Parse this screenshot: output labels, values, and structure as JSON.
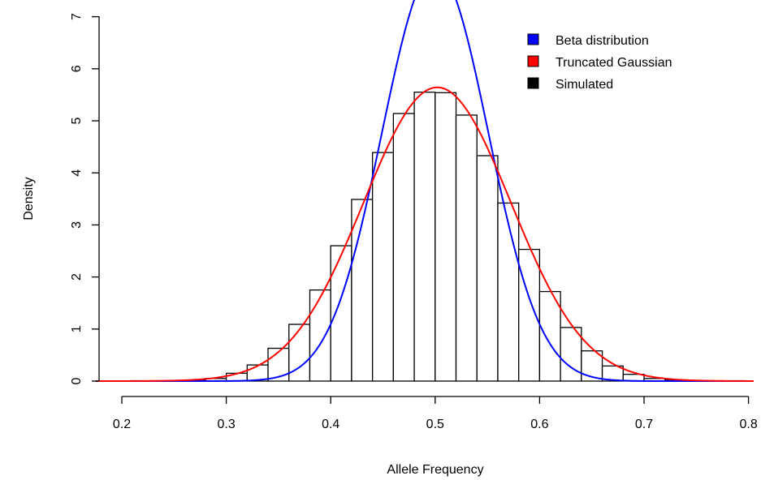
{
  "chart_data": {
    "type": "histogram",
    "title": "",
    "xlabel": "Allele Frequency",
    "ylabel": "Density",
    "xlim": [
      0.175,
      0.805
    ],
    "ylim": [
      0,
      7
    ],
    "x_ticks": [
      0.2,
      0.3,
      0.4,
      0.5,
      0.6,
      0.7,
      0.8
    ],
    "x_tick_labels": [
      "0.2",
      "0.3",
      "0.4",
      "0.5",
      "0.6",
      "0.7",
      "0.8"
    ],
    "y_ticks": [
      0,
      1,
      2,
      3,
      4,
      5,
      6,
      7
    ],
    "y_tick_labels": [
      "0",
      "1",
      "2",
      "3",
      "4",
      "5",
      "6",
      "7"
    ],
    "grid": false,
    "legend_position": "top-right",
    "histogram": {
      "name": "Simulated",
      "bin_width": 0.02,
      "bins": [
        {
          "x0": 0.26,
          "x1": 0.28,
          "density": 0.02
        },
        {
          "x0": 0.28,
          "x1": 0.3,
          "density": 0.05
        },
        {
          "x0": 0.3,
          "x1": 0.32,
          "density": 0.15
        },
        {
          "x0": 0.32,
          "x1": 0.34,
          "density": 0.31
        },
        {
          "x0": 0.34,
          "x1": 0.36,
          "density": 0.63
        },
        {
          "x0": 0.36,
          "x1": 0.38,
          "density": 1.09
        },
        {
          "x0": 0.38,
          "x1": 0.4,
          "density": 1.75
        },
        {
          "x0": 0.4,
          "x1": 0.42,
          "density": 2.6
        },
        {
          "x0": 0.42,
          "x1": 0.44,
          "density": 3.49
        },
        {
          "x0": 0.44,
          "x1": 0.46,
          "density": 4.39
        },
        {
          "x0": 0.46,
          "x1": 0.48,
          "density": 5.14
        },
        {
          "x0": 0.48,
          "x1": 0.5,
          "density": 5.55
        },
        {
          "x0": 0.5,
          "x1": 0.52,
          "density": 5.54
        },
        {
          "x0": 0.52,
          "x1": 0.54,
          "density": 5.11
        },
        {
          "x0": 0.54,
          "x1": 0.56,
          "density": 4.33
        },
        {
          "x0": 0.56,
          "x1": 0.58,
          "density": 3.42
        },
        {
          "x0": 0.58,
          "x1": 0.6,
          "density": 2.53
        },
        {
          "x0": 0.6,
          "x1": 0.62,
          "density": 1.72
        },
        {
          "x0": 0.62,
          "x1": 0.64,
          "density": 1.03
        },
        {
          "x0": 0.64,
          "x1": 0.66,
          "density": 0.58
        },
        {
          "x0": 0.66,
          "x1": 0.68,
          "density": 0.29
        },
        {
          "x0": 0.68,
          "x1": 0.7,
          "density": 0.13
        },
        {
          "x0": 0.7,
          "x1": 0.72,
          "density": 0.05
        },
        {
          "x0": 0.72,
          "x1": 0.74,
          "density": 0.02
        }
      ]
    },
    "curves": [
      {
        "name": "Beta distribution",
        "color": "#0000ff",
        "model": "beta",
        "alpha": 49.5,
        "beta": 49.5,
        "x_range": [
          0.175,
          0.805
        ]
      },
      {
        "name": "Truncated Gaussian",
        "color": "#ff0000",
        "model": "gaussian",
        "mean": 0.502,
        "sd": 0.0707,
        "x_range": [
          0.175,
          0.805
        ]
      }
    ],
    "legend": [
      {
        "label": "Beta distribution",
        "color": "#0000ff"
      },
      {
        "label": "Truncated Gaussian",
        "color": "#ff0000"
      },
      {
        "label": "Simulated",
        "color": "#000000"
      }
    ]
  }
}
